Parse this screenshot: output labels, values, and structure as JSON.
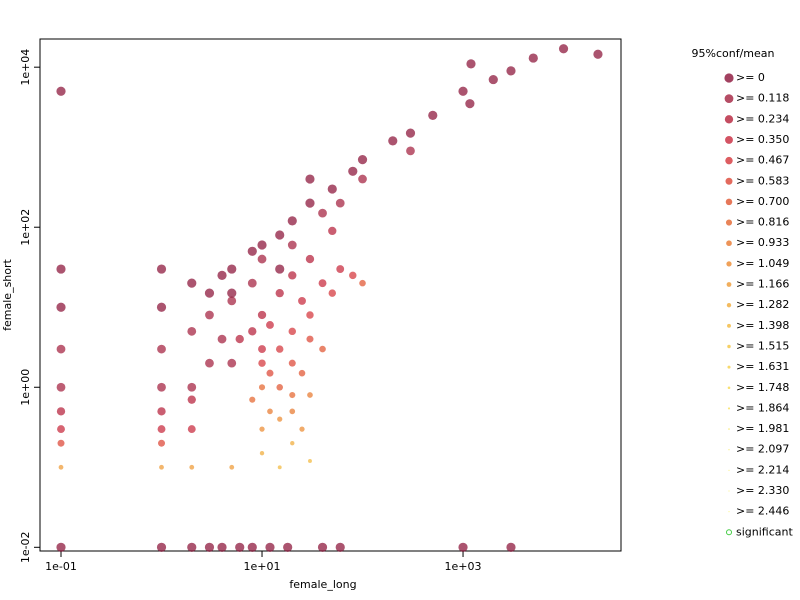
{
  "chart_data": {
    "type": "scatter",
    "x_label": "female_long",
    "y_label": "female_short",
    "legend_title": "95%conf/mean",
    "xlog": true,
    "ylog": true,
    "xlim": [
      0.0618,
      37300
    ],
    "ylim": [
      0.00899,
      22500
    ],
    "xticks": [
      {
        "value": 0.1,
        "label": "1e-01"
      },
      {
        "value": 10,
        "label": "1e+01"
      },
      {
        "value": 1000,
        "label": "1e+03"
      }
    ],
    "yticks": [
      {
        "value": 0.01,
        "label": "1e-02"
      },
      {
        "value": 1,
        "label": "1e+00"
      },
      {
        "value": 100,
        "label": "1e+02"
      },
      {
        "value": 10000,
        "label": "1e+04"
      }
    ],
    "series": [
      {
        "name": ">= 0",
        "color": "#8b1238",
        "x": [
          0.1,
          0.1,
          0.1,
          1,
          2,
          3,
          4,
          6,
          8,
          12,
          18,
          40,
          60,
          1000,
          3000,
          0.1,
          5,
          8,
          10,
          15,
          20,
          30,
          50,
          80,
          100,
          200,
          300,
          500,
          1000,
          2000,
          3000,
          5000,
          10000,
          22000,
          1200,
          1170,
          30,
          15,
          1,
          1,
          2,
          3,
          4,
          5
        ],
        "y": [
          5000,
          30,
          10,
          0.01,
          0.01,
          0.01,
          0.01,
          0.01,
          0.01,
          0.01,
          0.01,
          0.01,
          0.01,
          0.01,
          0.01,
          0.01,
          30,
          50,
          60,
          80,
          120,
          200,
          300,
          500,
          700,
          1200,
          1500,
          2500,
          5000,
          7000,
          9000,
          13000,
          17000,
          14500,
          11000,
          3500,
          400,
          30,
          30,
          10,
          20,
          15,
          25,
          15
        ]
      },
      {
        "name": ">= 0.118",
        "color": "#a3203f",
        "x": [
          3,
          5,
          8,
          10,
          20,
          40,
          60,
          100,
          300,
          0.1,
          0.1,
          1,
          2,
          3,
          4,
          5,
          1,
          2
        ],
        "y": [
          8,
          12,
          20,
          40,
          60,
          150,
          200,
          400,
          900,
          3,
          1,
          3,
          5,
          2,
          4,
          2,
          1,
          1
        ]
      },
      {
        "name": ">= 0.234",
        "color": "#b5203a",
        "x": [
          0.1,
          1,
          2,
          6,
          8,
          10,
          15,
          30,
          20,
          50
        ],
        "y": [
          0.5,
          0.5,
          0.7,
          4,
          5,
          8,
          15,
          40,
          25,
          90
        ]
      },
      {
        "name": ">= 0.350",
        "color": "#c8283c",
        "x": [
          0.1,
          1,
          2,
          10,
          12,
          25,
          40,
          60
        ],
        "y": [
          0.3,
          0.3,
          0.3,
          3,
          6,
          12,
          20,
          30
        ]
      },
      {
        "name": ">= 0.467",
        "color": "#d4353a",
        "x": [
          10,
          15,
          20,
          30,
          50,
          80
        ],
        "y": [
          2,
          3,
          5,
          8,
          15,
          25
        ]
      },
      {
        "name": ">= 0.583",
        "color": "#dc4535",
        "x": [
          12,
          20,
          30,
          0.1,
          1
        ],
        "y": [
          1.5,
          2,
          4,
          0.2,
          0.2
        ]
      },
      {
        "name": ">= 0.700",
        "color": "#e05530",
        "x": [
          15,
          25,
          40,
          100
        ],
        "y": [
          1,
          1.5,
          3,
          20
        ]
      },
      {
        "name": ">= 0.816",
        "color": "#e4652e",
        "x": [
          10,
          20,
          8
        ],
        "y": [
          1,
          0.8,
          0.7
        ]
      },
      {
        "name": ">= 0.933",
        "color": "#e8782e",
        "x": [
          12,
          20,
          30
        ],
        "y": [
          0.5,
          0.5,
          0.8
        ]
      },
      {
        "name": ">= 1.049",
        "color": "#ec8a30",
        "x": [
          10,
          15,
          25
        ],
        "y": [
          0.3,
          0.4,
          0.3
        ]
      },
      {
        "name": ">= 1.166",
        "color": "#ee9a34",
        "x": [
          0.1,
          1,
          2,
          5
        ],
        "y": [
          0.1,
          0.1,
          0.1,
          0.1
        ]
      },
      {
        "name": ">= 1.282",
        "color": "#f0aa38",
        "x": [
          10,
          20
        ],
        "y": [
          0.15,
          0.2
        ]
      },
      {
        "name": ">= 1.398",
        "color": "#f2b83c",
        "x": [
          15,
          30
        ],
        "y": [
          0.1,
          0.12
        ]
      },
      {
        "name": ">= 1.515",
        "color": "#f4c440",
        "x": [],
        "y": []
      },
      {
        "name": ">= 1.631",
        "color": "#f5cf48",
        "x": [],
        "y": []
      },
      {
        "name": ">= 1.748",
        "color": "#f6d850",
        "x": [],
        "y": []
      },
      {
        "name": ">= 1.864",
        "color": "#f7e058",
        "x": [],
        "y": []
      },
      {
        "name": ">= 1.981",
        "color": "#f8e660",
        "x": [],
        "y": []
      },
      {
        "name": ">= 2.097",
        "color": "#f9eb68",
        "x": [],
        "y": []
      },
      {
        "name": ">= 2.214",
        "color": "#faf070",
        "x": [],
        "y": []
      },
      {
        "name": ">= 2.330",
        "color": "#fbf378",
        "x": [],
        "y": []
      },
      {
        "name": ">= 2.446",
        "color": "#fcf680",
        "x": [],
        "y": []
      },
      {
        "name": "significant",
        "color": "#44cc44",
        "outline": true,
        "x": [],
        "y": []
      }
    ]
  }
}
